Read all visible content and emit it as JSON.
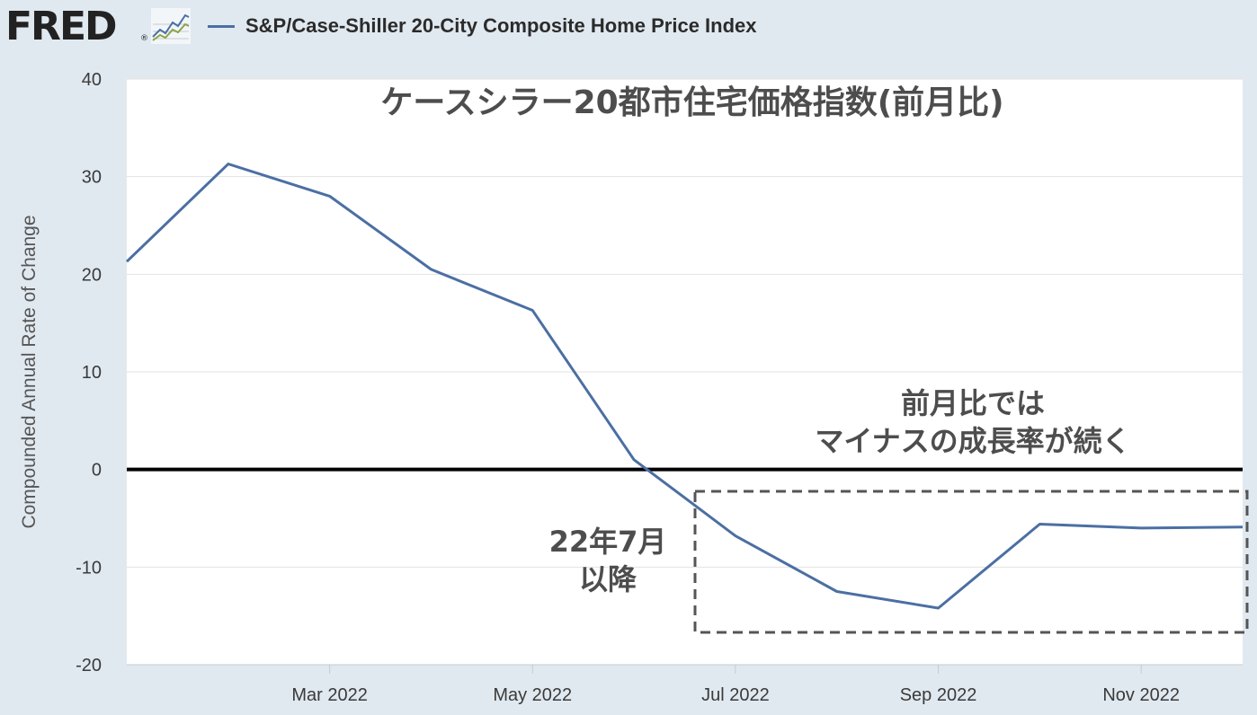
{
  "header": {
    "logo_text": "FRED",
    "logo_mark": "®",
    "logo_icon": "line-chart-icon",
    "series_color": "#4b6fa3",
    "series_label": "S&P/Case-Shiller 20-City Composite Home Price Index"
  },
  "annotations": {
    "title": "ケースシラー20都市住宅価格指数(前月比)",
    "note_line1": "前月比では",
    "note_line2": "マイナスの成長率が続く",
    "period_line1": "22年7月",
    "period_line2": "以降"
  },
  "chart_data": {
    "type": "line",
    "ylabel": "Compounded Annual Rate of Change",
    "ylim": [
      -20,
      40
    ],
    "yticks": [
      40,
      30,
      20,
      10,
      0,
      -10,
      -20
    ],
    "xlim": [
      "2022-01",
      "2022-12"
    ],
    "xticks": [
      {
        "label": "Mar 2022",
        "x": "2022-03"
      },
      {
        "label": "May 2022",
        "x": "2022-05"
      },
      {
        "label": "Jul 2022",
        "x": "2022-07"
      },
      {
        "label": "Sep 2022",
        "x": "2022-09"
      },
      {
        "label": "Nov 2022",
        "x": "2022-11"
      }
    ],
    "grid": true,
    "series": [
      {
        "name": "S&P/Case-Shiller 20-City Composite Home Price Index",
        "color": "#4b6fa3",
        "points": [
          {
            "x": "2022-01",
            "y": 21.3
          },
          {
            "x": "2022-02",
            "y": 31.3
          },
          {
            "x": "2022-03",
            "y": 28.0
          },
          {
            "x": "2022-04",
            "y": 20.5
          },
          {
            "x": "2022-05",
            "y": 16.3
          },
          {
            "x": "2022-06",
            "y": 1.0
          },
          {
            "x": "2022-07",
            "y": -6.8
          },
          {
            "x": "2022-08",
            "y": -12.5
          },
          {
            "x": "2022-09",
            "y": -14.2
          },
          {
            "x": "2022-10",
            "y": -5.6
          },
          {
            "x": "2022-11",
            "y": -6.0
          },
          {
            "x": "2022-12",
            "y": -5.9
          }
        ]
      }
    ]
  }
}
